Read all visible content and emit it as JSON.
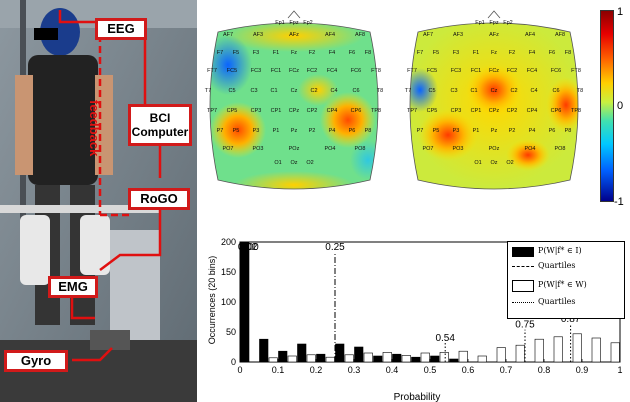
{
  "photo_labels": {
    "eeg": "EEG",
    "bci": "BCI Computer",
    "feedback": "feedback",
    "rogo": "RoGO",
    "emg": "EMG",
    "gyro": "Gyro"
  },
  "heads": {
    "channels": [
      "Fp1",
      "Fpz",
      "Fp2",
      "AF7",
      "AF3",
      "AFz",
      "AF4",
      "AF8",
      "F7",
      "F5",
      "F3",
      "F1",
      "Fz",
      "F2",
      "F4",
      "F6",
      "F8",
      "FT7",
      "FC5",
      "FC3",
      "FC1",
      "FCz",
      "FC2",
      "FC4",
      "FC6",
      "FT8",
      "T7",
      "C5",
      "C3",
      "C1",
      "Cz",
      "C2",
      "C4",
      "C6",
      "T8",
      "TP7",
      "CP5",
      "CP3",
      "CP1",
      "CPz",
      "CP2",
      "CP4",
      "CP6",
      "TP8",
      "P7",
      "P5",
      "P3",
      "P1",
      "Pz",
      "P2",
      "P4",
      "P6",
      "P8",
      "PO7",
      "PO3",
      "POz",
      "PO4",
      "PO8",
      "O1",
      "Oz",
      "O2"
    ]
  },
  "colorbar": {
    "ticks": [
      "1",
      "0",
      "-1"
    ]
  },
  "chart_data": {
    "type": "bar",
    "xlabel": "Probability",
    "ylabel": "Occurrences (20 bins)",
    "xlim": [
      0,
      1
    ],
    "ylim": [
      0,
      200
    ],
    "x_ticks": [
      "0",
      "0.1",
      "0.2",
      "0.3",
      "0.4",
      "0.5",
      "0.6",
      "0.7",
      "0.8",
      "0.9",
      "1"
    ],
    "y_ticks": [
      "0",
      "50",
      "100",
      "150",
      "200"
    ],
    "bin_centers": [
      0.025,
      0.075,
      0.125,
      0.175,
      0.225,
      0.275,
      0.325,
      0.375,
      0.425,
      0.475,
      0.525,
      0.575,
      0.625,
      0.675,
      0.725,
      0.775,
      0.825,
      0.875,
      0.925,
      0.975
    ],
    "series": [
      {
        "name": "P(W|f* ∈ I)",
        "style": "filled",
        "values": [
          200,
          38,
          18,
          30,
          13,
          30,
          25,
          10,
          13,
          8,
          10,
          5,
          0,
          0,
          0,
          0,
          0,
          0,
          0,
          0
        ],
        "quartile_values": [
          "0.00",
          "0.02",
          "0.25"
        ]
      },
      {
        "name": "P(W|f* ∈ W)",
        "style": "hollow",
        "values": [
          0,
          7,
          10,
          12,
          8,
          12,
          15,
          16,
          11,
          15,
          16,
          18,
          10,
          24,
          28,
          38,
          42,
          47,
          40,
          32
        ],
        "quartile_values": [
          "0.54",
          "0.75",
          "0.87"
        ]
      }
    ],
    "legend": {
      "entries": [
        "P(W|f* ∈ I)",
        "Quartiles",
        "P(W|f* ∈ W)",
        "Quartiles"
      ],
      "placement": "top-right"
    },
    "colors": {
      "filled": "#000000",
      "hollow": "#ffffff"
    }
  }
}
